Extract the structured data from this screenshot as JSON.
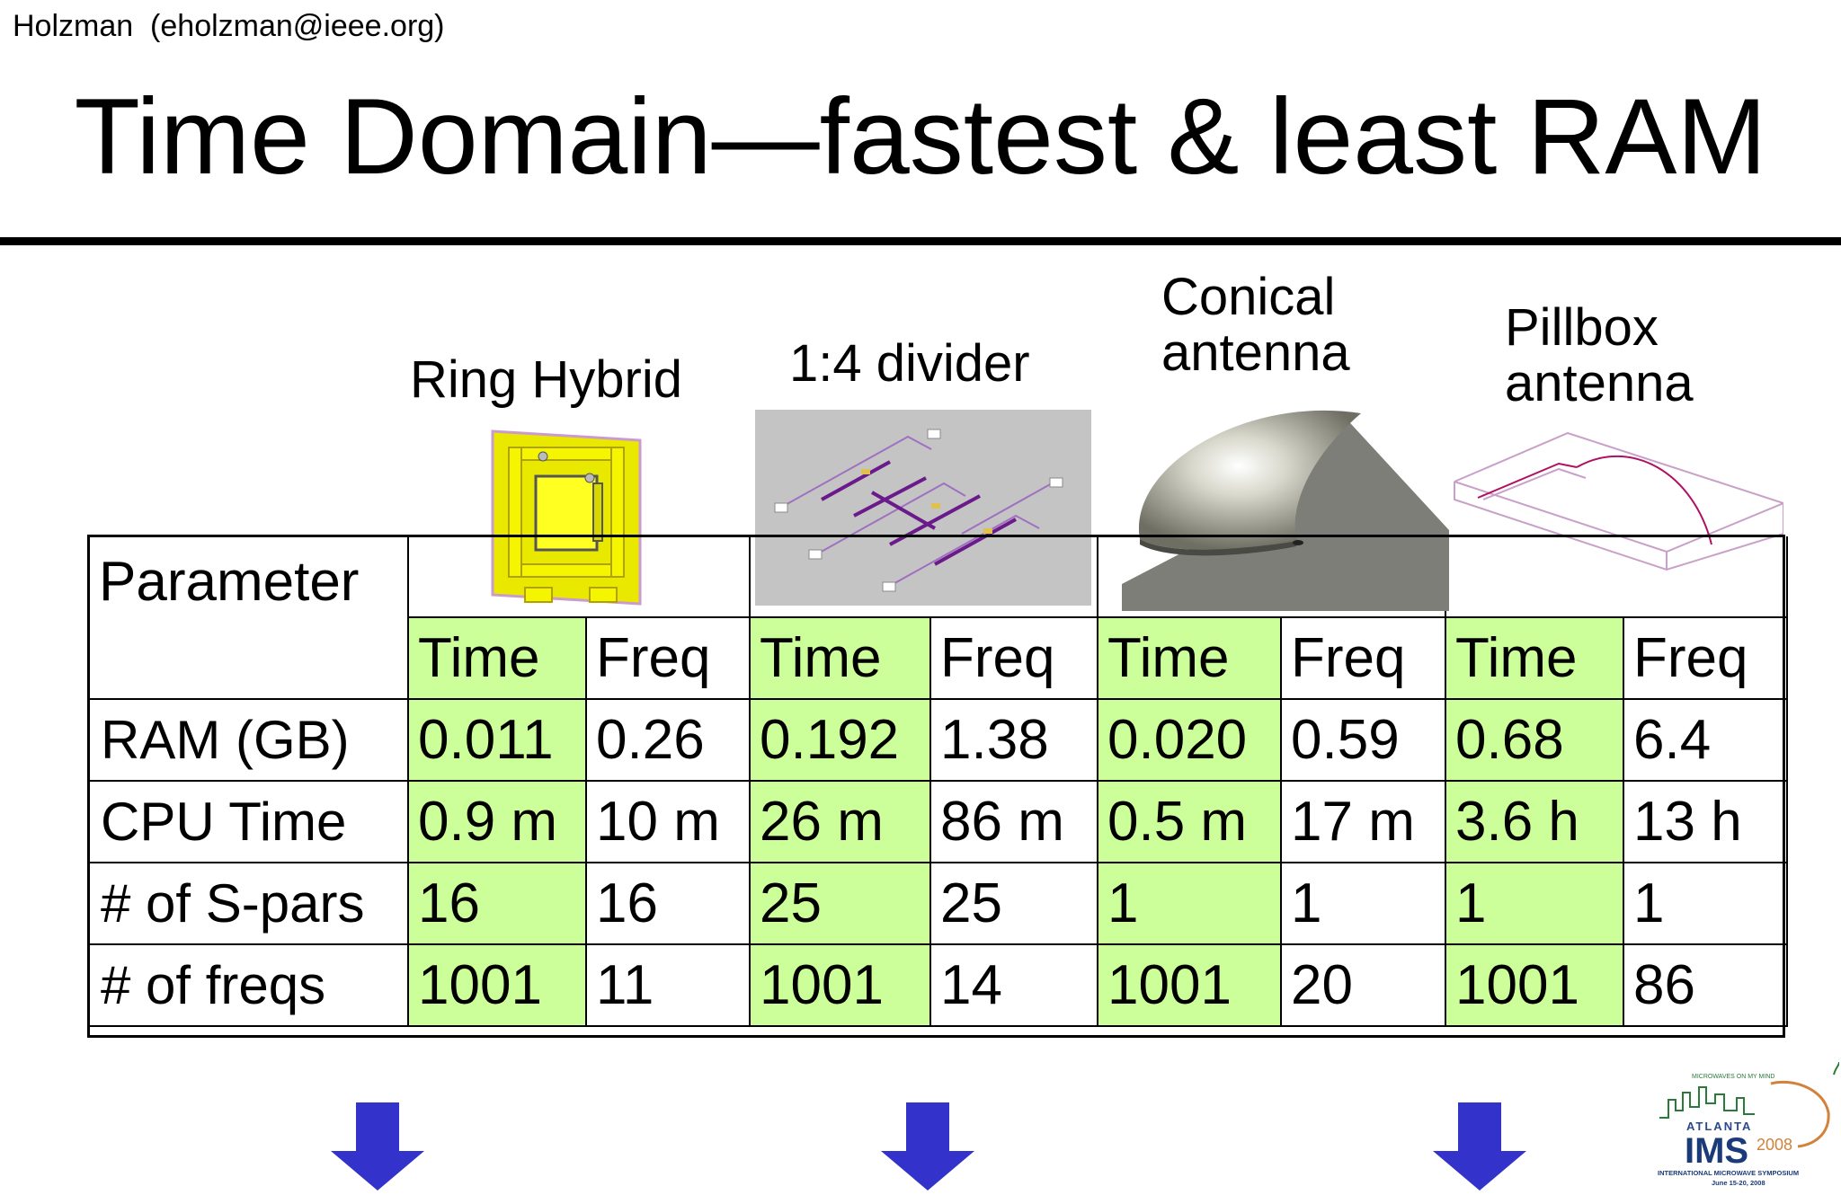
{
  "header": {
    "author": "Holzman  (eholzman@ieee.org)",
    "title": "Time Domain—fastest & least RAM"
  },
  "columns": [
    {
      "label_line1": "Ring Hybrid",
      "label_line2": ""
    },
    {
      "label_line1": "1:4 divider",
      "label_line2": ""
    },
    {
      "label_line1": "Conical",
      "label_line2": "antenna"
    },
    {
      "label_line1": "Pillbox",
      "label_line2": "antenna"
    }
  ],
  "table": {
    "corner": "Parameter",
    "subheaders": [
      "Time",
      "Freq",
      "Time",
      "Freq",
      "Time",
      "Freq",
      "Time",
      "Freq"
    ],
    "rows": [
      {
        "label": "RAM (GB)",
        "cells": [
          "0.011",
          "0.26",
          "0.192",
          "1.38",
          "0.020",
          "0.59",
          "0.68",
          "6.4"
        ]
      },
      {
        "label": "CPU Time",
        "cells": [
          "0.9 m",
          "10 m",
          "26 m",
          "86 m",
          "0.5 m",
          "17 m",
          "3.6 h",
          "13 h"
        ]
      },
      {
        "label": "# of S-pars",
        "cells": [
          "16",
          "16",
          "25",
          "25",
          "1",
          "1",
          "1",
          "1"
        ]
      },
      {
        "label": "# of freqs",
        "cells": [
          "1001",
          "11",
          "1001",
          "14",
          "1001",
          "20",
          "1001",
          "86"
        ]
      }
    ]
  },
  "logo": {
    "top_text": "MICROWAVES ON MY MIND",
    "city": "ATLANTA",
    "name": "IMS",
    "year": "2008",
    "subtitle": "INTERNATIONAL MICROWAVE SYMPOSIUM",
    "dates": "June 15-20, 2008"
  },
  "colors": {
    "time_cell": "#ccff99",
    "arrow": "#3333cc"
  }
}
